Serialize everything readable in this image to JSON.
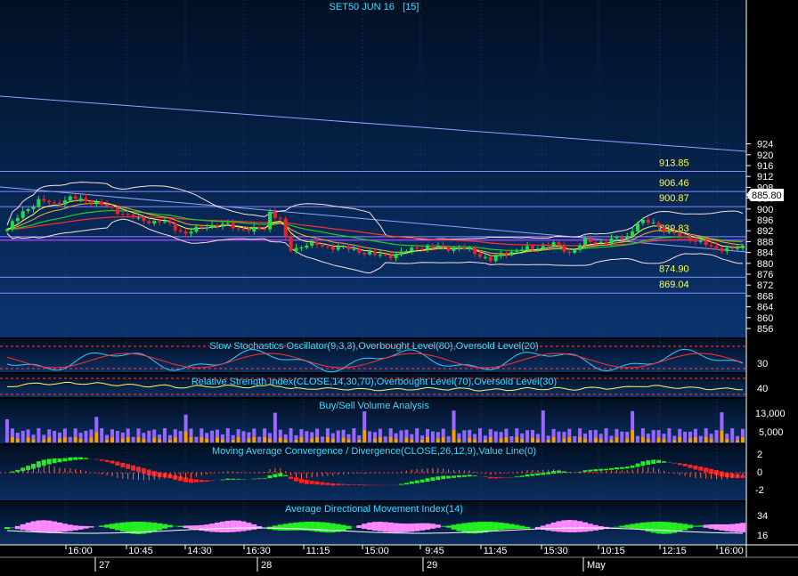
{
  "title": "SET50 JUN 16   [15]",
  "colors": {
    "background": "#06203f",
    "grid": "#1e3d66",
    "axis_text": "#ffffff",
    "title_text": "#33ddff",
    "level_text": "#ffff44",
    "up_candle": "#22dd44",
    "down_candle": "#ee2222",
    "volume_up": "#9966ff",
    "volume_down": "#ff9900",
    "macd_positive": "#22ee22",
    "macd_negative": "#ff2222",
    "adx_green": "#22ee22",
    "adx_pink": "#ff88ff"
  },
  "chart_data": [
    {
      "type": "candlestick",
      "title": "SET50 JUN 16   [15]",
      "ylim": [
        854,
        925
      ],
      "y_ticks": [
        856,
        860,
        864,
        868,
        872,
        876,
        880,
        884,
        888,
        892,
        896,
        900,
        904,
        908,
        912,
        916,
        920,
        924
      ],
      "last_price": "885.80",
      "horizontal_levels": [
        913.85,
        906.46,
        900.87,
        889.83,
        874.9,
        869.04
      ],
      "level_labels": [
        "913.85",
        "906.46",
        "900.87",
        "889.83",
        "874.90",
        "869.04"
      ],
      "close_path": [
        [
          0,
          892.5
        ],
        [
          3,
          899
        ],
        [
          6,
          903
        ],
        [
          9,
          902
        ],
        [
          12,
          904
        ],
        [
          16,
          903
        ],
        [
          20,
          900
        ],
        [
          25,
          896
        ],
        [
          30,
          895
        ],
        [
          34,
          891
        ],
        [
          38,
          894
        ],
        [
          42,
          894
        ],
        [
          46,
          892
        ],
        [
          49,
          893
        ],
        [
          50,
          899
        ],
        [
          52,
          896
        ],
        [
          53,
          889
        ],
        [
          54,
          885
        ],
        [
          57,
          887
        ],
        [
          62,
          886
        ],
        [
          66,
          885
        ],
        [
          70,
          883
        ],
        [
          74,
          883
        ],
        [
          78,
          886
        ],
        [
          82,
          886
        ],
        [
          88,
          885
        ],
        [
          92,
          881
        ],
        [
          95,
          884
        ],
        [
          98,
          885
        ],
        [
          101,
          886
        ],
        [
          104,
          887
        ],
        [
          107,
          884
        ],
        [
          110,
          888
        ],
        [
          114,
          888
        ],
        [
          118,
          890
        ],
        [
          120,
          895
        ],
        [
          123,
          895
        ],
        [
          126,
          891
        ],
        [
          130,
          889
        ],
        [
          134,
          886
        ],
        [
          138,
          885
        ],
        [
          140,
          886
        ]
      ],
      "overlays": [
        "Bollinger Bands",
        "Moving Averages",
        "Trend Channel"
      ]
    },
    {
      "type": "line",
      "title": "Slow Stochastics Oscillator(9,3,3),Overbought Level(80),Oversold Level(20)",
      "y_tick_labels": [
        "30"
      ]
    },
    {
      "type": "line",
      "title": "Relative Strength Index(CLOSE,14,30,70),Overbought Level(70),Oversold Level(30)",
      "y_tick_labels": [
        "40"
      ]
    },
    {
      "type": "bar",
      "title": "Buy/Sell Volume Analysis",
      "y_tick_labels": [
        "13,000",
        "5,000"
      ]
    },
    {
      "type": "area",
      "title": "Moving Average Convergence / Divergence(CLOSE,26,12,9),Value Line(0)",
      "y_tick_labels": [
        "2",
        "0",
        "-2"
      ]
    },
    {
      "type": "area",
      "title": "Average Directional Movement Index(14)",
      "y_tick_labels": [
        "34",
        "16"
      ]
    }
  ],
  "x_axis": {
    "time_labels": [
      "16:00",
      "10:45",
      "14:30",
      "16:30",
      "11:15",
      "15:00",
      "9:45",
      "11:45",
      "15:30",
      "10:15",
      "12:15",
      "16:00"
    ],
    "date_labels": [
      "27",
      "28",
      "29",
      "May"
    ]
  }
}
